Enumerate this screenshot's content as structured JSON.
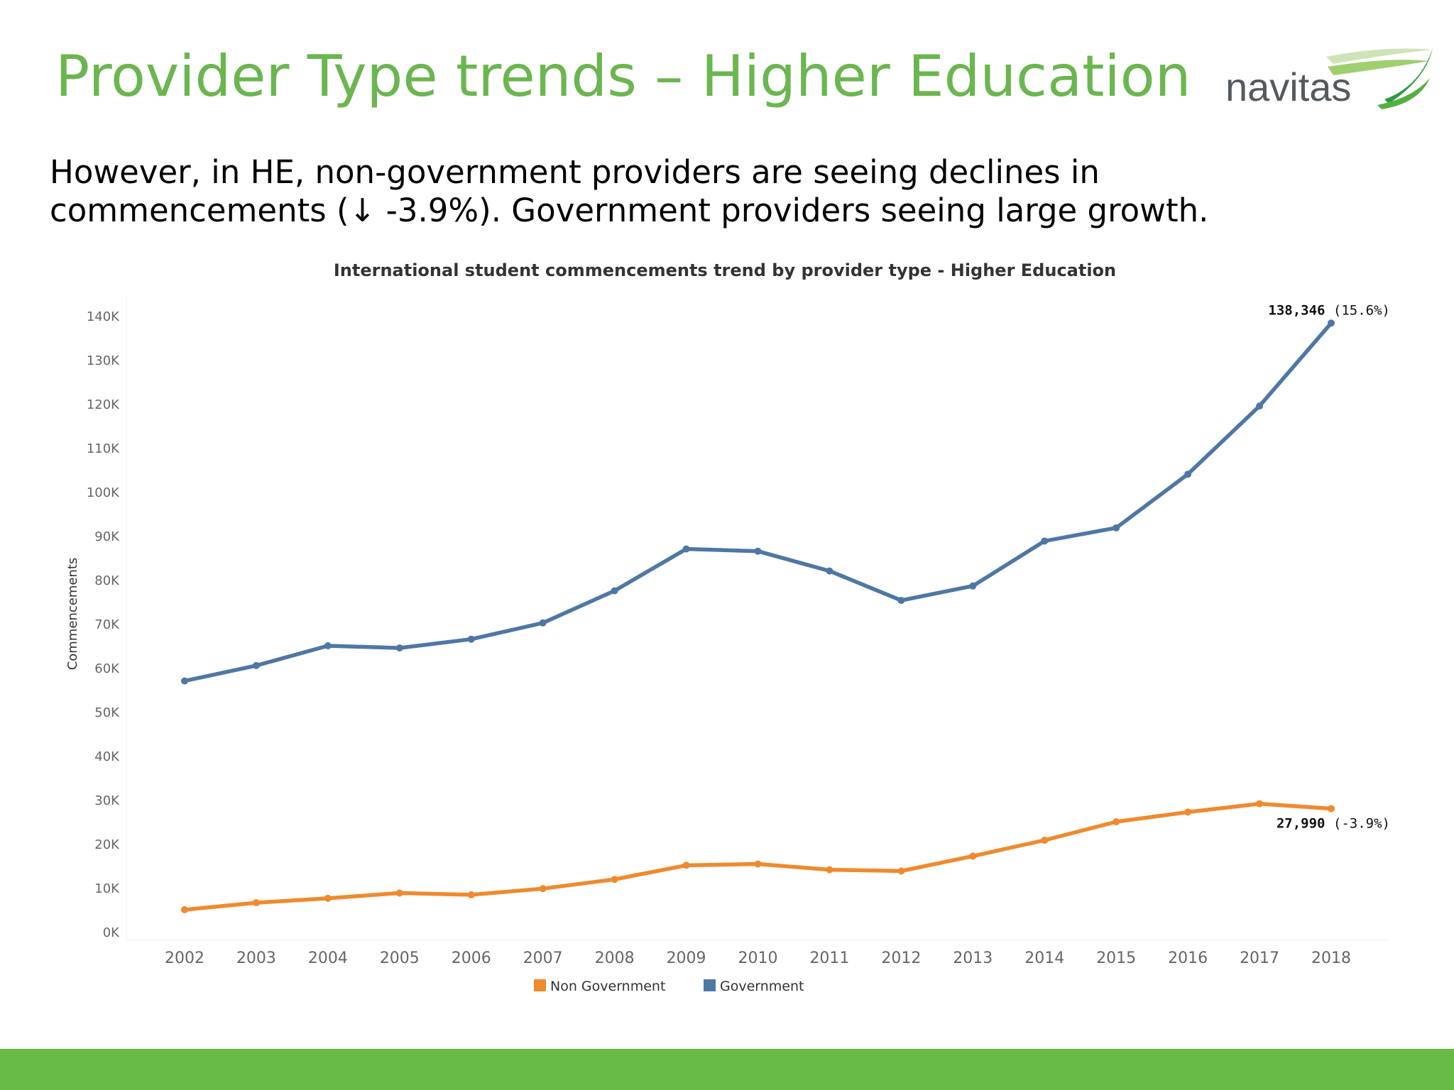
{
  "slide": {
    "title": "Provider Type trends – Higher Education",
    "subtitle_line1": "However, in HE, non-government providers are seeing declines in",
    "subtitle_line2": "commencements (↓ -3.9%). Government providers seeing large growth."
  },
  "logo": {
    "text": "navitas",
    "icon": "swoosh-logo"
  },
  "colors": {
    "title": "#6bb64f",
    "government": "#4e77a5",
    "non_government": "#ef8a2e",
    "footer": "#69bb48"
  },
  "chart_data": {
    "type": "line",
    "title": "International student commencements trend by provider type - Higher Education",
    "ylabel": "Commencements",
    "xlabel": "",
    "x": [
      2002,
      2003,
      2004,
      2005,
      2006,
      2007,
      2008,
      2009,
      2010,
      2011,
      2012,
      2013,
      2014,
      2015,
      2016,
      2017,
      2018
    ],
    "ylim": [
      0,
      140000
    ],
    "yticks": [
      0,
      10000,
      20000,
      30000,
      40000,
      50000,
      60000,
      70000,
      80000,
      90000,
      100000,
      110000,
      120000,
      130000,
      140000
    ],
    "ytick_labels": [
      "0K",
      "10K",
      "20K",
      "30K",
      "40K",
      "50K",
      "60K",
      "70K",
      "80K",
      "90K",
      "100K",
      "110K",
      "120K",
      "130K",
      "140K"
    ],
    "legend_position": "bottom-center",
    "series": [
      {
        "name": "Non Government",
        "color": "#ef8a2e",
        "values": [
          5000,
          6600,
          7600,
          8800,
          8400,
          9800,
          11900,
          15100,
          15400,
          14100,
          13800,
          17200,
          20800,
          25000,
          27200,
          29100,
          27990
        ],
        "end_label": "27,990",
        "end_change": "(-3.9%)"
      },
      {
        "name": "Government",
        "color": "#4e77a5",
        "values": [
          57000,
          60500,
          65000,
          64500,
          66500,
          70200,
          77500,
          87000,
          86500,
          82000,
          75300,
          78600,
          88800,
          91800,
          104000,
          119500,
          138346
        ],
        "end_label": "138,346",
        "end_change": "(15.6%)"
      }
    ]
  }
}
